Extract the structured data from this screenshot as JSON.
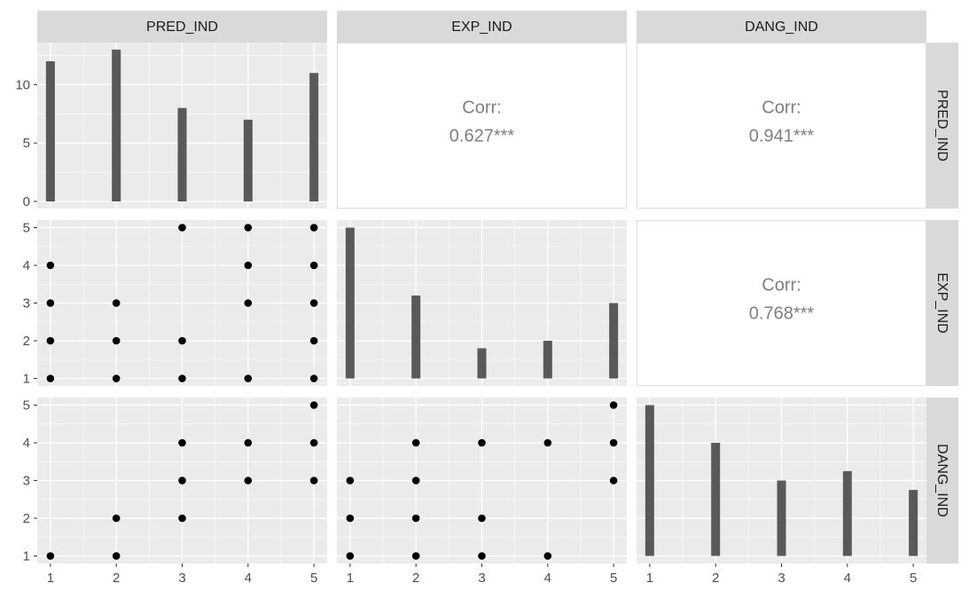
{
  "chart_data": {
    "type": "scatter-matrix",
    "variables": [
      "PRED_IND",
      "EXP_IND",
      "DANG_IND"
    ],
    "axis_ticks": [
      1,
      2,
      3,
      4,
      5
    ],
    "count_axis": {
      "ticks": [
        0,
        5,
        10
      ],
      "ylim": [
        0,
        13.6
      ]
    },
    "diagonal_histograms": [
      {
        "variable": "PRED_IND",
        "categories": [
          1,
          2,
          3,
          4,
          5
        ],
        "counts": [
          12,
          13,
          8,
          7,
          11
        ]
      },
      {
        "variable": "EXP_IND",
        "categories": [
          1,
          2,
          3,
          4,
          5
        ],
        "counts": [
          20,
          11,
          4,
          5,
          10
        ]
      },
      {
        "variable": "DANG_IND",
        "categories": [
          1,
          2,
          3,
          4,
          5
        ],
        "counts": [
          16,
          12,
          8,
          9,
          7
        ]
      }
    ],
    "correlations": [
      {
        "x": "EXP_IND",
        "y": "PRED_IND",
        "label": "Corr:",
        "value": "0.627***"
      },
      {
        "x": "DANG_IND",
        "y": "PRED_IND",
        "label": "Corr:",
        "value": "0.941***"
      },
      {
        "x": "DANG_IND",
        "y": "EXP_IND",
        "label": "Corr:",
        "value": "0.768***"
      }
    ],
    "scatter_panels": [
      {
        "x": "PRED_IND",
        "y": "EXP_IND",
        "points": [
          [
            1,
            1
          ],
          [
            1,
            2
          ],
          [
            1,
            3
          ],
          [
            1,
            4
          ],
          [
            2,
            1
          ],
          [
            2,
            2
          ],
          [
            2,
            3
          ],
          [
            3,
            1
          ],
          [
            3,
            2
          ],
          [
            3,
            5
          ],
          [
            4,
            1
          ],
          [
            4,
            3
          ],
          [
            4,
            4
          ],
          [
            4,
            5
          ],
          [
            5,
            1
          ],
          [
            5,
            2
          ],
          [
            5,
            3
          ],
          [
            5,
            4
          ],
          [
            5,
            5
          ]
        ]
      },
      {
        "x": "PRED_IND",
        "y": "DANG_IND",
        "points": [
          [
            1,
            1
          ],
          [
            2,
            1
          ],
          [
            2,
            2
          ],
          [
            3,
            2
          ],
          [
            3,
            3
          ],
          [
            3,
            4
          ],
          [
            4,
            3
          ],
          [
            4,
            4
          ],
          [
            5,
            3
          ],
          [
            5,
            4
          ],
          [
            5,
            5
          ]
        ]
      },
      {
        "x": "EXP_IND",
        "y": "DANG_IND",
        "points": [
          [
            1,
            1
          ],
          [
            1,
            2
          ],
          [
            1,
            3
          ],
          [
            2,
            1
          ],
          [
            2,
            2
          ],
          [
            2,
            3
          ],
          [
            2,
            4
          ],
          [
            3,
            1
          ],
          [
            3,
            2
          ],
          [
            3,
            4
          ],
          [
            4,
            1
          ],
          [
            4,
            4
          ],
          [
            5,
            3
          ],
          [
            5,
            4
          ],
          [
            5,
            5
          ]
        ]
      }
    ],
    "colors": {
      "panel_background": "#ebebeb",
      "grid_major": "#ffffff",
      "strip_background": "#d9d9d9",
      "bar_fill": "#595959",
      "point_fill": "#000000",
      "corr_text": "#7f7f7f",
      "tick_text": "#4d4d4d"
    }
  }
}
